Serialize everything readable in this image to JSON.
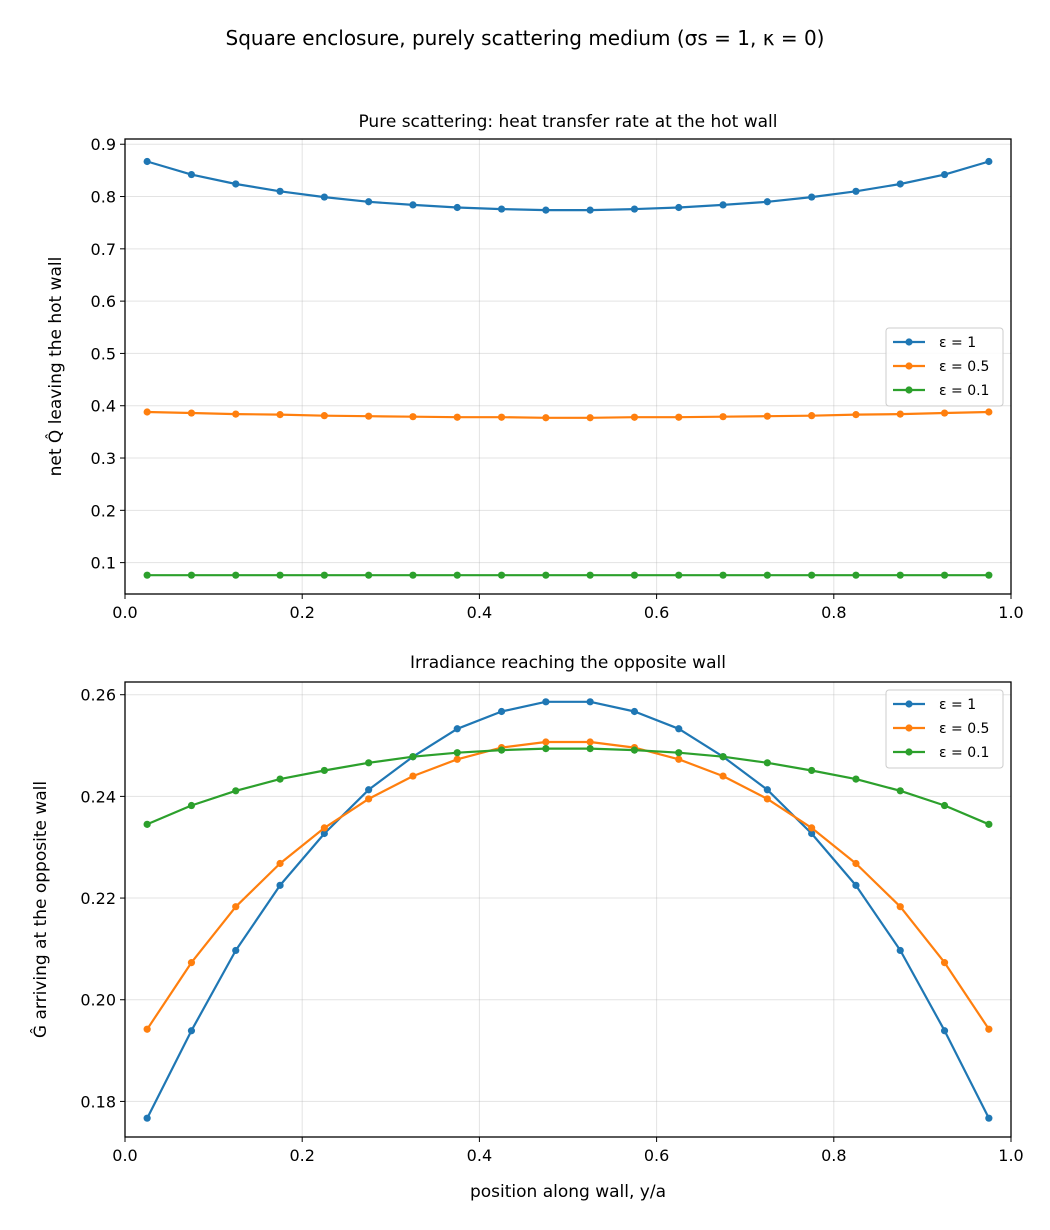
{
  "suptitle": "Square enclosure, purely scattering medium (σs = 1, κ = 0)",
  "colors": {
    "eps1": "#1f77b4",
    "eps05": "#ff7f0e",
    "eps01": "#2ca02c"
  },
  "chart_data": [
    {
      "type": "line",
      "title": "Pure scattering: heat transfer rate at the hot wall",
      "xlabel": "",
      "ylabel": "net Q̂ leaving the hot wall",
      "xlim": [
        0.0,
        1.0
      ],
      "ylim": [
        0.04,
        0.91
      ],
      "xticks": [
        "0.0",
        "0.2",
        "0.4",
        "0.6",
        "0.8",
        "1.0"
      ],
      "yticks": [
        "0.1",
        "0.2",
        "0.3",
        "0.4",
        "0.5",
        "0.6",
        "0.7",
        "0.8",
        "0.9"
      ],
      "grid": true,
      "legend_position": "center-right",
      "x": [
        0.025,
        0.075,
        0.125,
        0.175,
        0.225,
        0.275,
        0.325,
        0.375,
        0.425,
        0.475,
        0.525,
        0.575,
        0.625,
        0.675,
        0.725,
        0.775,
        0.825,
        0.875,
        0.925,
        0.975
      ],
      "series": [
        {
          "name": "ε = 1",
          "color": "#1f77b4",
          "values": [
            0.867,
            0.842,
            0.824,
            0.81,
            0.799,
            0.79,
            0.784,
            0.779,
            0.776,
            0.774,
            0.774,
            0.776,
            0.779,
            0.784,
            0.79,
            0.799,
            0.81,
            0.824,
            0.842,
            0.867
          ]
        },
        {
          "name": "ε = 0.5",
          "color": "#ff7f0e",
          "values": [
            0.388,
            0.386,
            0.384,
            0.383,
            0.381,
            0.38,
            0.379,
            0.378,
            0.378,
            0.377,
            0.377,
            0.378,
            0.378,
            0.379,
            0.38,
            0.381,
            0.383,
            0.384,
            0.386,
            0.388
          ]
        },
        {
          "name": "ε = 0.1",
          "color": "#2ca02c",
          "values": [
            0.076,
            0.076,
            0.076,
            0.076,
            0.076,
            0.076,
            0.076,
            0.076,
            0.076,
            0.076,
            0.076,
            0.076,
            0.076,
            0.076,
            0.076,
            0.076,
            0.076,
            0.076,
            0.076,
            0.076
          ]
        }
      ]
    },
    {
      "type": "line",
      "title": "Irradiance reaching the opposite wall",
      "xlabel": "position along wall, y/a",
      "ylabel": "Ĝ arriving at the opposite wall",
      "xlim": [
        0.0,
        1.0
      ],
      "ylim": [
        0.173,
        0.2625
      ],
      "xticks": [
        "0.0",
        "0.2",
        "0.4",
        "0.6",
        "0.8",
        "1.0"
      ],
      "yticks": [
        "0.18",
        "0.20",
        "0.22",
        "0.24",
        "0.26"
      ],
      "grid": true,
      "legend_position": "top-right",
      "x": [
        0.025,
        0.075,
        0.125,
        0.175,
        0.225,
        0.275,
        0.325,
        0.375,
        0.425,
        0.475,
        0.525,
        0.575,
        0.625,
        0.675,
        0.725,
        0.775,
        0.825,
        0.875,
        0.925,
        0.975
      ],
      "series": [
        {
          "name": "ε = 1",
          "color": "#1f77b4",
          "values": [
            0.1767,
            0.1939,
            0.2097,
            0.2225,
            0.2327,
            0.2413,
            0.2478,
            0.2533,
            0.2567,
            0.2586,
            0.2586,
            0.2567,
            0.2533,
            0.2478,
            0.2413,
            0.2327,
            0.2225,
            0.2097,
            0.1939,
            0.1767
          ]
        },
        {
          "name": "ε = 0.5",
          "color": "#ff7f0e",
          "values": [
            0.1942,
            0.2073,
            0.2183,
            0.2268,
            0.2338,
            0.2395,
            0.244,
            0.2473,
            0.2496,
            0.2507,
            0.2507,
            0.2496,
            0.2473,
            0.244,
            0.2395,
            0.2338,
            0.2268,
            0.2183,
            0.2073,
            0.1942
          ]
        },
        {
          "name": "ε = 0.1",
          "color": "#2ca02c",
          "values": [
            0.2345,
            0.2382,
            0.2411,
            0.2434,
            0.2451,
            0.2466,
            0.2478,
            0.2486,
            0.2491,
            0.2494,
            0.2494,
            0.2491,
            0.2486,
            0.2478,
            0.2466,
            0.2451,
            0.2434,
            0.2411,
            0.2382,
            0.2345
          ]
        }
      ]
    }
  ]
}
